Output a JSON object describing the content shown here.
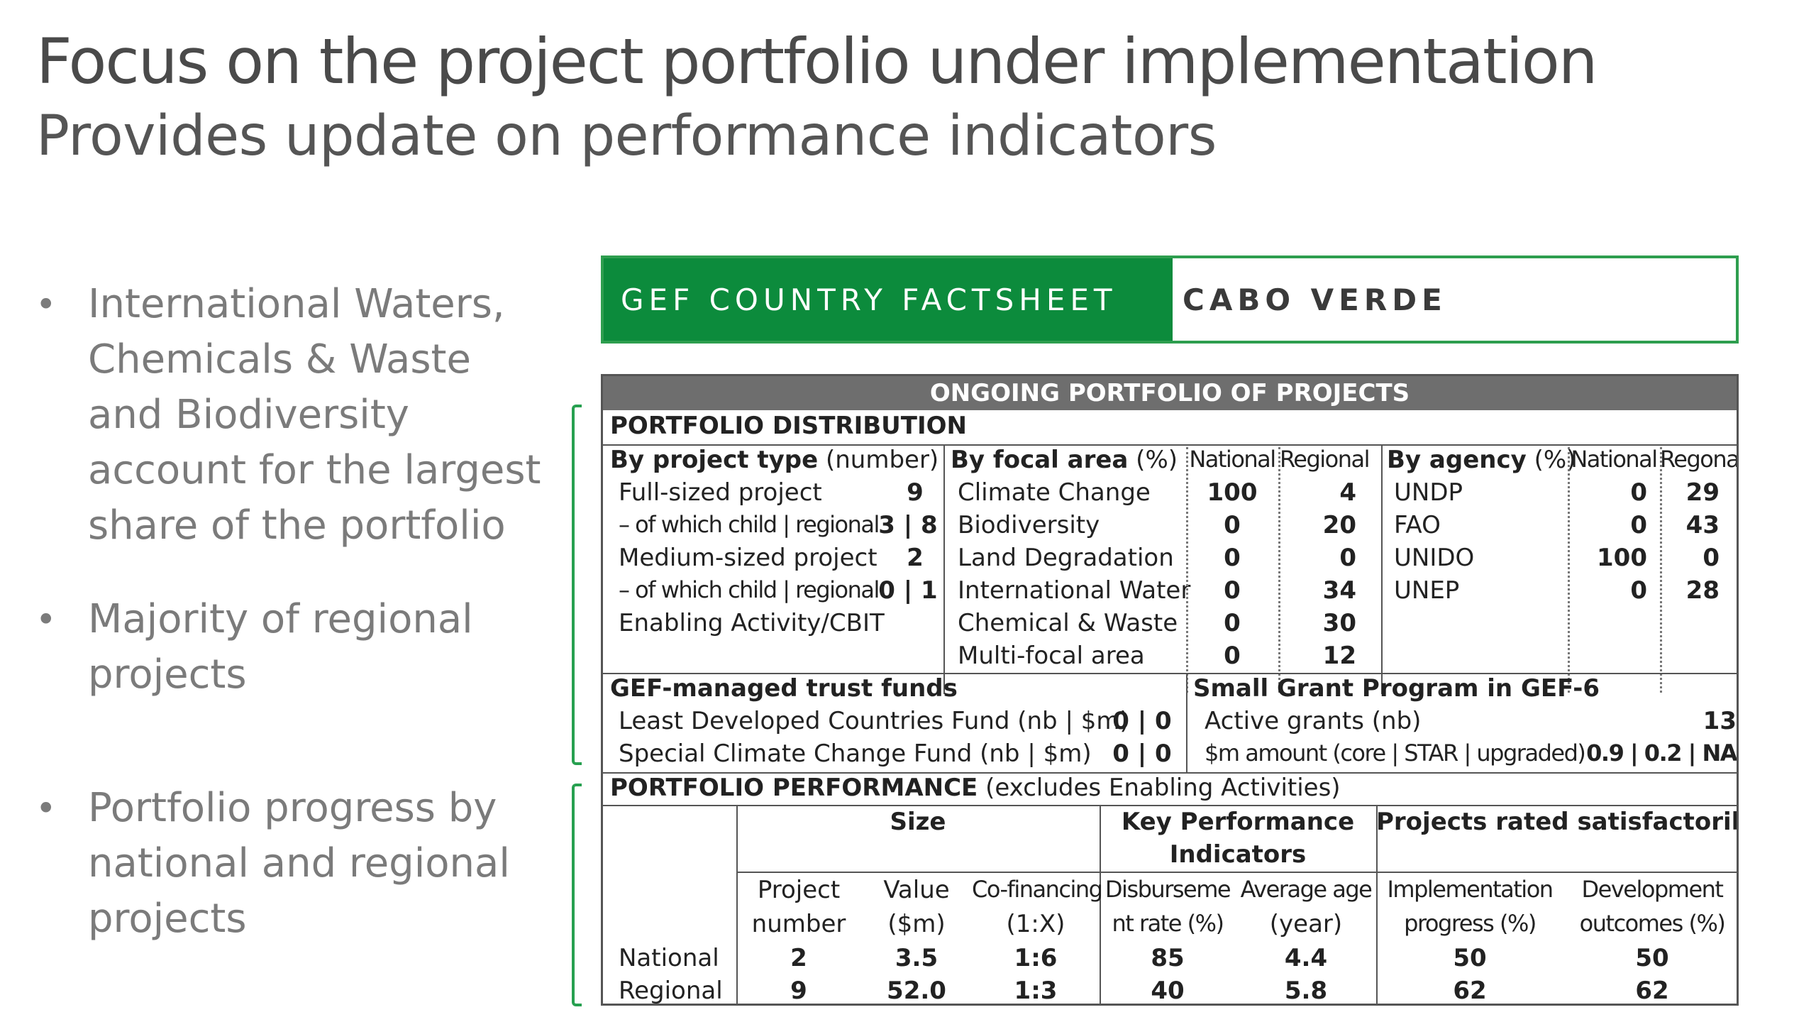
{
  "title": "Focus on the project portfolio under implementation",
  "subtitle": "Provides update on performance indicators",
  "bullets": [
    "International Waters, Chemicals & Waste and Biodiversity account for the largest share of the portfolio",
    "Majority of regional projects",
    "Portfolio progress by national and regional projects"
  ],
  "factsheet": {
    "header_left": "GEF COUNTRY FACTSHEET",
    "header_right": "CABO VERDE",
    "ongoing_title": "ONGOING PORTFOLIO OF PROJECTS",
    "distribution_title": "PORTFOLIO DISTRIBUTION",
    "by_project_type": {
      "label_bold": "By project type",
      "label_rest": " (number)",
      "rows": [
        {
          "label": "Full-sized project",
          "value": "9"
        },
        {
          "label": "– of which child | regional",
          "value": "3 | 8"
        },
        {
          "label": "Medium-sized project",
          "value": "2"
        },
        {
          "label": "– of which child | regional",
          "value": "0 | 1"
        },
        {
          "label": "Enabling Activity/CBIT",
          "value": ""
        }
      ]
    },
    "by_focal_area": {
      "label_bold": "By focal area",
      "label_rest": " (%)",
      "col_national": "National",
      "col_regional": "Regional",
      "rows": [
        {
          "label": "Climate Change",
          "national": "100",
          "regional": "4"
        },
        {
          "label": "Biodiversity",
          "national": "0",
          "regional": "20"
        },
        {
          "label": "Land Degradation",
          "national": "0",
          "regional": "0"
        },
        {
          "label": "International Water",
          "national": "0",
          "regional": "34"
        },
        {
          "label": "Chemical & Waste",
          "national": "0",
          "regional": "30"
        },
        {
          "label": "Multi-focal area",
          "national": "0",
          "regional": "12"
        }
      ]
    },
    "by_agency": {
      "label_bold": "By agency",
      "label_rest": " (%)",
      "col_national": "National",
      "col_regional": "Regonal",
      "rows": [
        {
          "label": "UNDP",
          "national": "0",
          "regional": "29"
        },
        {
          "label": "FAO",
          "national": "0",
          "regional": "43"
        },
        {
          "label": "UNIDO",
          "national": "100",
          "regional": "0"
        },
        {
          "label": "UNEP",
          "national": "0",
          "regional": "28"
        }
      ]
    },
    "trust_funds": {
      "title": "GEF-managed trust funds",
      "rows": [
        {
          "label": "Least Developed Countries Fund (nb | $m)",
          "value": "0 | 0"
        },
        {
          "label": "Special Climate Change Fund (nb | $m)",
          "value": "0 | 0"
        }
      ]
    },
    "sgp": {
      "title": "Small Grant Program in GEF-6",
      "rows": [
        {
          "label": "Active grants (nb)",
          "value": "13"
        },
        {
          "label": "$m amount (core | STAR | upgraded)",
          "value": "0.9 | 0.2 | NA"
        }
      ]
    },
    "performance": {
      "title_bold": "PORTFOLIO PERFORMANCE",
      "title_rest": " (excludes Enabling Activities)",
      "group_size": "Size",
      "group_kpi_line1": "Key Performance",
      "group_kpi_line2": "Indicators",
      "group_rated": "Projects rated satisfactorily",
      "columns": [
        {
          "line1": "Project",
          "line2": "number"
        },
        {
          "line1": "Value",
          "line2": "($m)"
        },
        {
          "line1": "Co-financing",
          "line2": "(1:X)"
        },
        {
          "line1": "Disburseme",
          "line2": "nt rate (%)"
        },
        {
          "line1": "Average age",
          "line2": "(year)"
        },
        {
          "line1": "Implementation",
          "line2": "progress (%)"
        },
        {
          "line1": "Development",
          "line2": "outcomes (%)"
        }
      ],
      "rows": [
        {
          "label": "National",
          "values": [
            "2",
            "3.5",
            "1:6",
            "85",
            "4.4",
            "50",
            "50"
          ]
        },
        {
          "label": "Regional",
          "values": [
            "9",
            "52.0",
            "1:3",
            "40",
            "5.8",
            "62",
            "62"
          ]
        }
      ]
    }
  }
}
